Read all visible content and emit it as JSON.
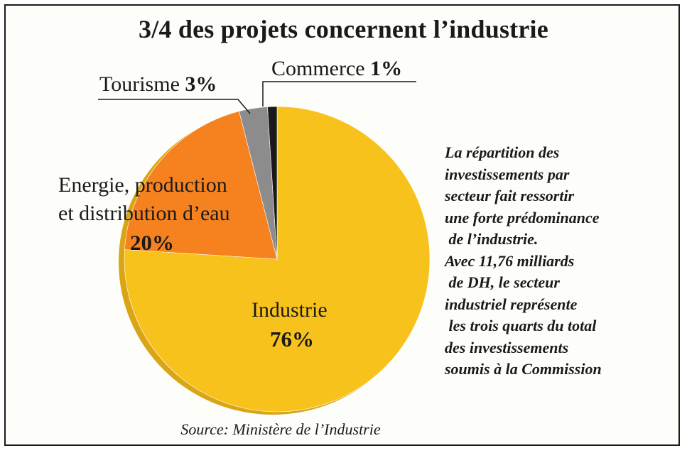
{
  "chart_data": {
    "type": "pie",
    "title": "3/4 des projets concernent l’industrie",
    "slices": [
      {
        "label": "Industrie",
        "value": 76,
        "value_label": "76%",
        "color": "#f8c21d"
      },
      {
        "label_lines": [
          "Energie, production",
          "et distribution d’eau"
        ],
        "value": 20,
        "value_label": "20%",
        "color": "#f5821f"
      },
      {
        "label": "Tourisme",
        "value": 3,
        "value_label": "3%",
        "color": "#8c8c8c"
      },
      {
        "label": "Commerce",
        "value": 1,
        "value_label": "1%",
        "color": "#1a1a1a"
      }
    ],
    "description_lines": [
      "La répartition des",
      "investissements par",
      "secteur fait ressortir",
      "une forte prédominance",
      " de l’industrie.",
      "Avec 11,76 milliards",
      " de DH, le secteur",
      "industriel représente",
      " les trois quarts du total",
      "des investissements",
      "soumis à la Commission"
    ],
    "source": "Source: Ministère de l’Industrie"
  }
}
